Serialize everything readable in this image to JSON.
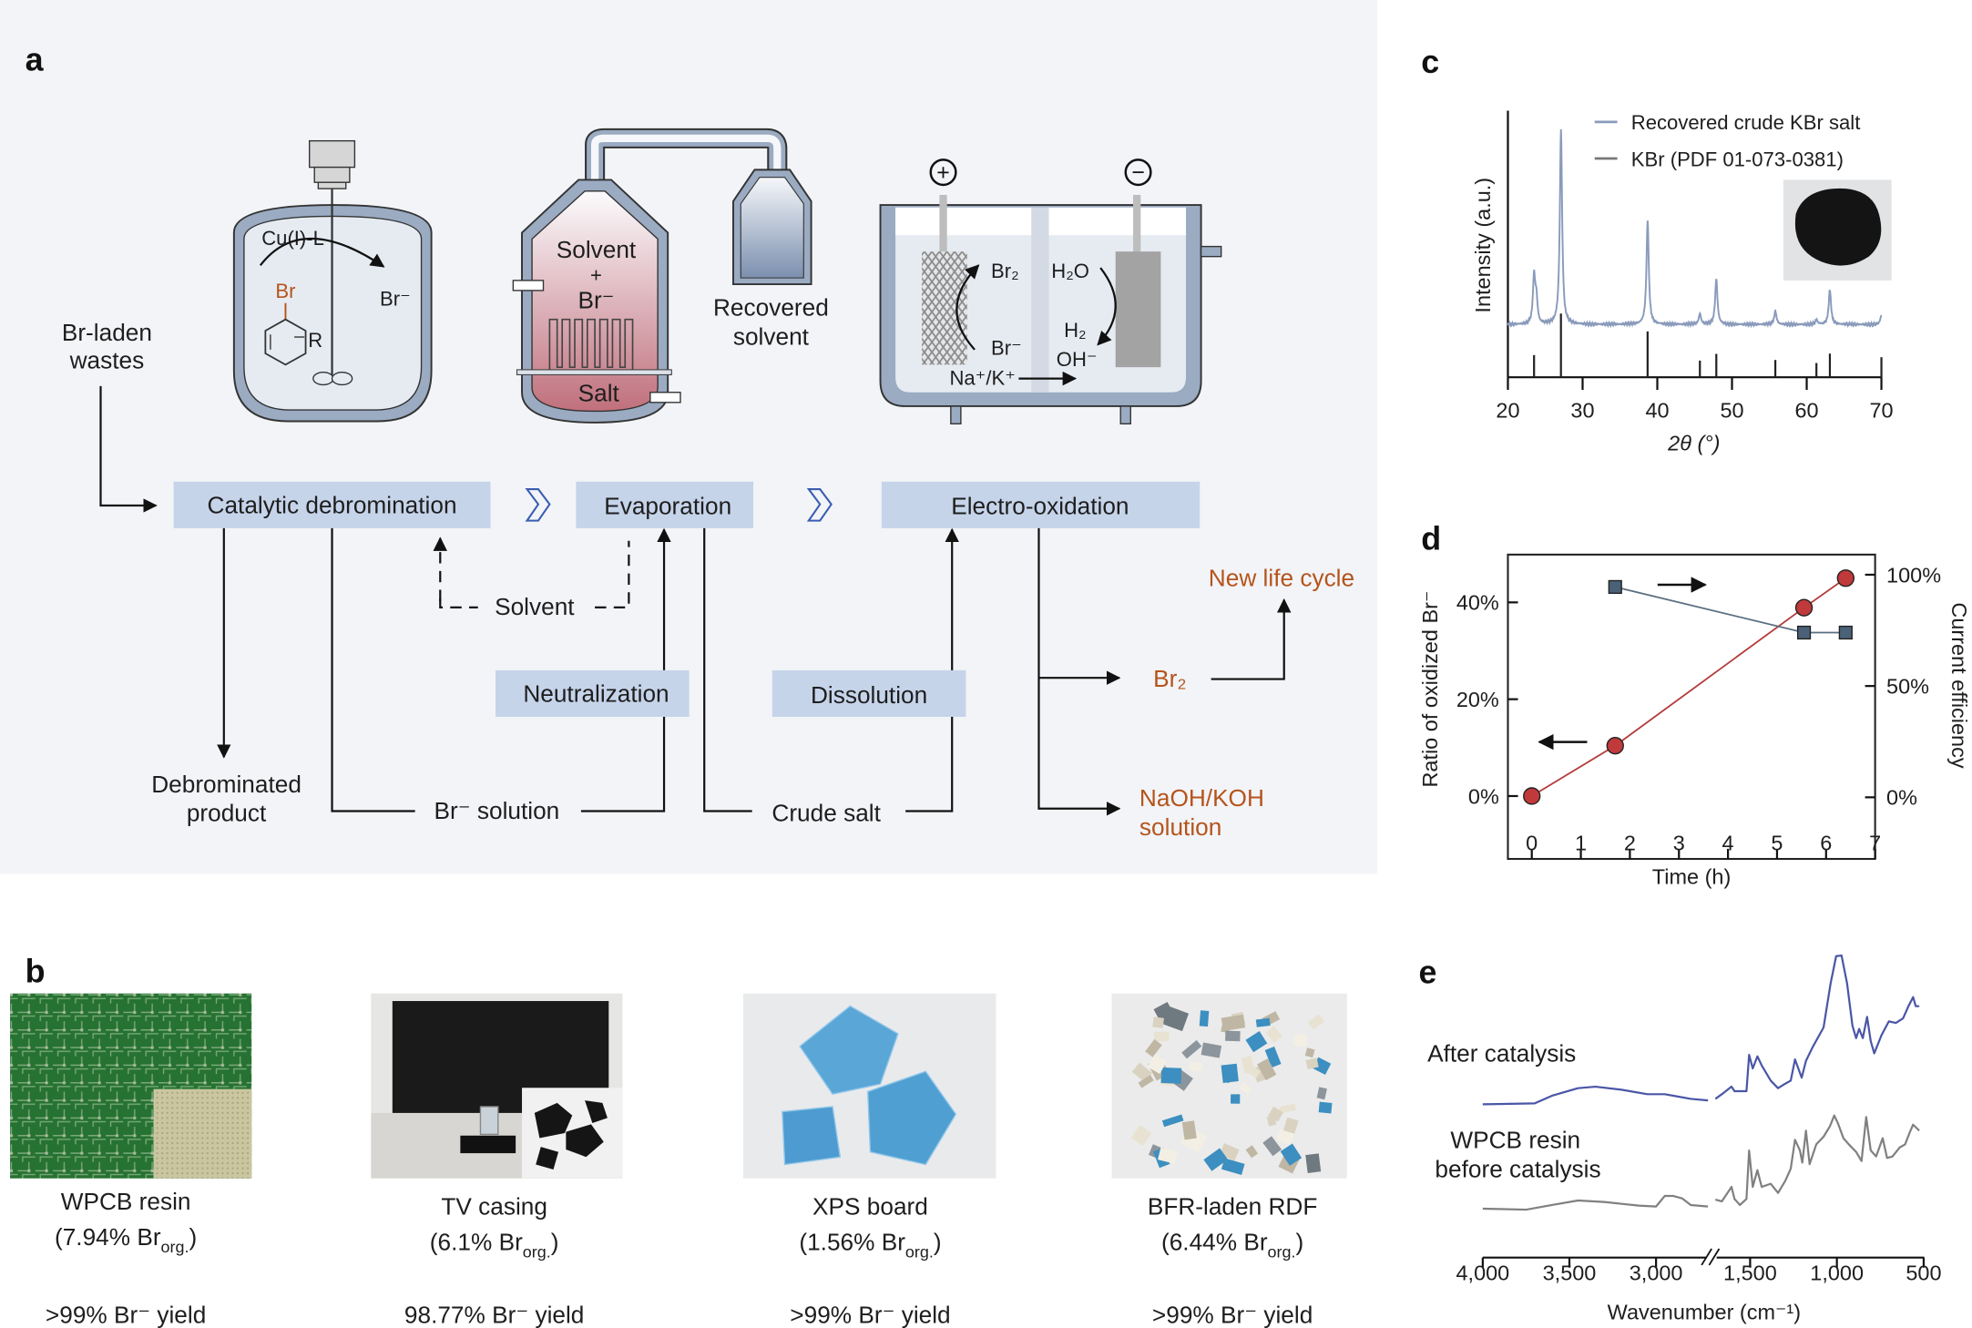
{
  "panel_labels": {
    "a": "a",
    "b": "b",
    "c": "c",
    "d": "d",
    "e": "e"
  },
  "panel_a": {
    "input": [
      "Br-laden",
      "wastes"
    ],
    "reactor": {
      "catalyst": "Cu(I)-L",
      "substrate_br": "Br",
      "substituent": "R",
      "product": "Br⁻"
    },
    "evaporator": {
      "solvent": "Solvent",
      "plus": "+",
      "bromide": "Br⁻",
      "salt": "Salt"
    },
    "recovered_solvent": [
      "Recovered",
      "solvent"
    ],
    "cell": {
      "anode_sign": "+",
      "cathode_sign": "−",
      "br2": "Br₂",
      "br_minus": "Br⁻",
      "h2o": "H₂O",
      "h2": "H₂",
      "oh": "OH⁻",
      "cations": "Na⁺/K⁺"
    },
    "steps": {
      "catalytic": "Catalytic debromination",
      "evaporation": "Evaporation",
      "electro": "Electro-oxidation",
      "neutralization": "Neutralization",
      "dissolution": "Dissolution"
    },
    "flows": {
      "solvent": "Solvent",
      "br_solution": "Br⁻ solution",
      "crude_salt": "Crude salt",
      "product": [
        "Debrominated",
        "product"
      ],
      "br2": "Br₂",
      "new_life": "New life cycle",
      "naoh": [
        "NaOH/KOH",
        "solution"
      ]
    },
    "colors": {
      "background": "#f2f4f7",
      "step_box": "#c6d4ea",
      "vessel": "#9aabc2",
      "product_text": "#b5541c"
    }
  },
  "panel_b": {
    "samples": [
      {
        "name": "WPCB resin",
        "content_prefix": "(7.94% Br",
        "content_sub": "org.",
        "content_suffix": ")",
        "yield": ">99% Br⁻ yield"
      },
      {
        "name": "TV casing",
        "content_prefix": "(6.1% Br",
        "content_sub": "org.",
        "content_suffix": ")",
        "yield": "98.77% Br⁻ yield"
      },
      {
        "name": "XPS board",
        "content_prefix": "(1.56% Br",
        "content_sub": "org.",
        "content_suffix": ")",
        "yield": ">99% Br⁻ yield"
      },
      {
        "name": "BFR-laden RDF",
        "content_prefix": "(6.44% Br",
        "content_sub": "org.",
        "content_suffix": ")",
        "yield": ">99% Br⁻ yield"
      }
    ]
  },
  "chart_data": [
    {
      "panel": "c",
      "type": "line",
      "xlabel": "2θ (°)",
      "ylabel": "Intensity (a.u.)",
      "xlim": [
        20,
        70
      ],
      "xticks": [
        "20",
        "30",
        "40",
        "50",
        "60",
        "70"
      ],
      "legend_position": "top-right",
      "series": [
        {
          "name": "Recovered crude KBr salt",
          "color": "#8a9bbb",
          "peaks": [
            [
              23.5,
              155
            ],
            [
              23.8,
              80
            ],
            [
              27.1,
              643
            ],
            [
              38.7,
              343
            ],
            [
              45.7,
              35
            ],
            [
              47.9,
              150
            ],
            [
              55.8,
              45
            ],
            [
              61.3,
              15
            ],
            [
              63.1,
              115
            ],
            [
              70.0,
              30
            ]
          ]
        },
        {
          "name": "KBr (PDF 01-073-0381)",
          "color": "#333333",
          "sticks": [
            [
              23.5,
              73
            ],
            [
              27.1,
              210
            ],
            [
              38.7,
              151
            ],
            [
              45.7,
              55
            ],
            [
              47.9,
              77
            ],
            [
              55.8,
              57
            ],
            [
              61.3,
              47
            ],
            [
              63.1,
              78
            ],
            [
              70.0,
              66
            ]
          ]
        }
      ]
    },
    {
      "panel": "d",
      "type": "line",
      "xlabel": "Time (h)",
      "ylabel": "Ratio of oxidized Br⁻",
      "ylabel_right": "Current efficiency",
      "xlim": [
        -0.5,
        7
      ],
      "ylim_left": [
        -5,
        50
      ],
      "ylim_right": [
        0,
        100
      ],
      "xticks": [
        "0",
        "1",
        "2",
        "3",
        "4",
        "5",
        "6",
        "7"
      ],
      "yticks_left": [
        "0%",
        "20%",
        "40%"
      ],
      "yticks_right": [
        "0%",
        "50%",
        "100%"
      ],
      "series": [
        {
          "axis": "left",
          "marker": "circle",
          "color": "#c0393b",
          "x": [
            0,
            1.7,
            5.55,
            6.4
          ],
          "y": [
            0,
            10.4,
            38.9,
            45
          ]
        },
        {
          "axis": "right",
          "marker": "square",
          "color": "#4a6178",
          "x": [
            1.7,
            5.55,
            6.4
          ],
          "y": [
            94.5,
            74,
            74
          ]
        }
      ]
    },
    {
      "panel": "e",
      "type": "line",
      "xlabel": "Wavenumber (cm⁻¹)",
      "x_reversed": true,
      "x_break": [
        2700,
        1700
      ],
      "xticks": [
        "4,000",
        "3,500",
        "3,000",
        "1,500",
        "1,000",
        "500"
      ],
      "series": [
        {
          "name": "After catalysis",
          "color": "#4a56a6",
          "segments": [
            [
              [
                4000,
                45.2
              ],
              [
                3700,
                45.5
              ],
              [
                3600,
                48
              ],
              [
                3450,
                50.5
              ],
              [
                3350,
                51
              ],
              [
                3200,
                50
              ],
              [
                3050,
                48.5
              ],
              [
                2950,
                48.5
              ],
              [
                2900,
                48
              ],
              [
                2800,
                47
              ],
              [
                2700,
                46.5
              ]
            ],
            [
              [
                1700,
                47
              ],
              [
                1663,
                48.5
              ],
              [
                1607,
                51
              ],
              [
                1590,
                49.5
              ],
              [
                1521,
                49.5
              ],
              [
                1506,
                61.5
              ],
              [
                1485,
                57
              ],
              [
                1458,
                61
              ],
              [
                1433,
                58
              ],
              [
                1381,
                53
              ],
              [
                1339,
                50.5
              ],
              [
                1297,
                52
              ],
              [
                1266,
                53
              ],
              [
                1241,
                60
              ],
              [
                1203,
                54
              ],
              [
                1178,
                59.5
              ],
              [
                1140,
                64
              ],
              [
                1077,
                70.5
              ],
              [
                1036,
                85
              ],
              [
                1004,
                94
              ],
              [
                973,
                94.2
              ],
              [
                941,
                85
              ],
              [
                910,
                71
              ],
              [
                889,
                67
              ],
              [
                872,
                70
              ],
              [
                851,
                67
              ],
              [
                826,
                74
              ],
              [
                805,
                66
              ],
              [
                785,
                62
              ],
              [
                743,
                68
              ],
              [
                701,
                72.5
              ],
              [
                660,
                72
              ],
              [
                619,
                73.5
              ],
              [
                588,
                77.5
              ],
              [
                561,
                80.5
              ],
              [
                546,
                77.5
              ],
              [
                525,
                77.5
              ]
            ]
          ]
        },
        {
          "name": "WPCB resin before catalysis",
          "label_lines": [
            "WPCB resin",
            "before catalysis"
          ],
          "color": "#808080",
          "segments": [
            [
              [
                4000,
                10.8
              ],
              [
                3750,
                10.5
              ],
              [
                3600,
                12
              ],
              [
                3450,
                13.5
              ],
              [
                3300,
                13
              ],
              [
                3100,
                11.8
              ],
              [
                3000,
                11.5
              ],
              [
                2950,
                15
              ],
              [
                2900,
                15
              ],
              [
                2850,
                14.2
              ],
              [
                2800,
                12
              ],
              [
                2700,
                11.5
              ]
            ],
            [
              [
                1700,
                13.8
              ],
              [
                1663,
                13.2
              ],
              [
                1607,
                18
              ],
              [
                1590,
                14
              ],
              [
                1559,
                12
              ],
              [
                1521,
                14
              ],
              [
                1506,
                30
              ],
              [
                1485,
                18
              ],
              [
                1458,
                23.5
              ],
              [
                1433,
                18
              ],
              [
                1381,
                19
              ],
              [
                1339,
                16
              ],
              [
                1297,
                20
              ],
              [
                1266,
                24
              ],
              [
                1241,
                33.5
              ],
              [
                1213,
                30
              ],
              [
                1199,
                26
              ],
              [
                1178,
                36.5
              ],
              [
                1157,
                25.5
              ],
              [
                1119,
                32
              ],
              [
                1077,
                34.5
              ],
              [
                1040,
                38
              ],
              [
                1015,
                41.5
              ],
              [
                994,
                39
              ],
              [
                962,
                34
              ],
              [
                931,
                32
              ],
              [
                889,
                29.5
              ],
              [
                858,
                26.5
              ],
              [
                831,
                41
              ],
              [
                805,
                30
              ],
              [
                774,
                28
              ],
              [
                736,
                34
              ],
              [
                711,
                27.5
              ],
              [
                680,
                28
              ],
              [
                638,
                31
              ],
              [
                607,
                32
              ],
              [
                580,
                36
              ],
              [
                561,
                38.5
              ],
              [
                525,
                36.5
              ]
            ]
          ]
        }
      ]
    }
  ]
}
